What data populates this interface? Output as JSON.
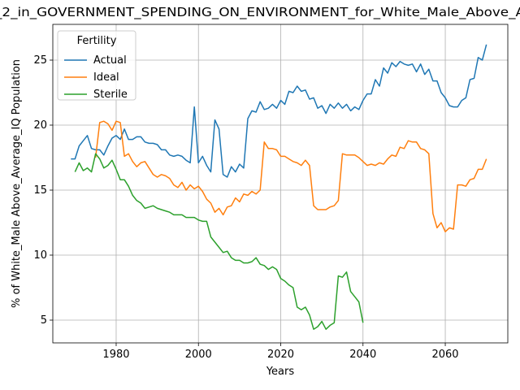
{
  "chart_data": {
    "type": "line",
    "title": "_2_in_GOVERNMENT_SPENDING_ON_ENVIRONMENT_for_White_Male_Above_A",
    "xlabel": "Years",
    "ylabel": "% of White_Male Above_Average_IQ Population",
    "legend_title": "Fertility",
    "legend_loc": "upper left",
    "grid": true,
    "xlim": [
      1964.6,
      2075.2
    ],
    "ylim": [
      3.25,
      27.75
    ],
    "xticks": [
      1980,
      2000,
      2020,
      2040,
      2060
    ],
    "yticks": [
      5,
      10,
      15,
      20,
      25
    ],
    "x": [
      1969,
      1970,
      1971,
      1972,
      1973,
      1974,
      1975,
      1976,
      1977,
      1978,
      1979,
      1980,
      1981,
      1982,
      1983,
      1984,
      1985,
      1986,
      1987,
      1988,
      1989,
      1990,
      1991,
      1992,
      1993,
      1994,
      1995,
      1996,
      1997,
      1998,
      1999,
      2000,
      2001,
      2002,
      2003,
      2004,
      2005,
      2006,
      2007,
      2008,
      2009,
      2010,
      2011,
      2012,
      2013,
      2014,
      2015,
      2016,
      2017,
      2018,
      2019,
      2020,
      2021,
      2022,
      2023,
      2024,
      2025,
      2026,
      2027,
      2028,
      2029,
      2030,
      2031,
      2032,
      2033,
      2034,
      2035,
      2036,
      2037,
      2038,
      2039,
      2040,
      2041,
      2042,
      2043,
      2044,
      2045,
      2046,
      2047,
      2048,
      2049,
      2050,
      2051,
      2052,
      2053,
      2054,
      2055,
      2056,
      2057,
      2058,
      2059,
      2060,
      2061,
      2062,
      2063,
      2064,
      2065,
      2066,
      2067,
      2068,
      2069,
      2070
    ],
    "series": [
      {
        "name": "Actual",
        "color": "#1f77b4",
        "values": [
          17.4,
          17.4,
          18.4,
          18.8,
          19.2,
          18.2,
          18.1,
          18.1,
          17.7,
          18.4,
          19.0,
          19.2,
          18.9,
          19.7,
          18.9,
          18.9,
          19.1,
          19.1,
          18.7,
          18.6,
          18.6,
          18.5,
          18.1,
          18.1,
          17.7,
          17.6,
          17.7,
          17.6,
          17.3,
          17.1,
          21.4,
          17.1,
          17.6,
          16.9,
          16.4,
          20.4,
          19.7,
          16.2,
          16.0,
          16.8,
          16.4,
          17.0,
          16.7,
          20.5,
          21.1,
          21.0,
          21.8,
          21.2,
          21.3,
          21.6,
          21.3,
          21.9,
          21.6,
          22.6,
          22.5,
          23.0,
          22.6,
          22.7,
          22.0,
          22.1,
          21.3,
          21.5,
          20.9,
          21.6,
          21.3,
          21.7,
          21.3,
          21.6,
          21.1,
          21.4,
          21.2,
          21.9,
          22.4,
          22.4,
          23.5,
          23.0,
          24.4,
          24.0,
          24.8,
          24.5,
          24.9,
          24.7,
          24.6,
          24.7,
          24.1,
          24.7,
          23.9,
          24.3,
          23.4,
          23.4,
          22.5,
          22.1,
          21.5,
          21.4,
          21.4,
          21.9,
          22.1,
          23.5,
          23.6,
          25.2,
          25.0,
          26.2
        ]
      },
      {
        "name": "Ideal",
        "color": "#ff7f0e",
        "values": [
          null,
          null,
          null,
          null,
          null,
          null,
          17.5,
          20.2,
          20.3,
          20.1,
          19.6,
          20.3,
          20.2,
          17.6,
          17.8,
          17.2,
          16.8,
          17.1,
          17.2,
          16.7,
          16.2,
          16.0,
          16.2,
          16.1,
          15.9,
          15.4,
          15.2,
          15.6,
          15.0,
          15.4,
          15.1,
          15.3,
          14.9,
          14.3,
          14.0,
          13.3,
          13.6,
          13.1,
          13.7,
          13.8,
          14.4,
          14.1,
          14.7,
          14.6,
          14.9,
          14.7,
          15.0,
          18.7,
          18.2,
          18.2,
          18.1,
          17.6,
          17.6,
          17.4,
          17.2,
          17.1,
          16.9,
          17.3,
          16.9,
          13.8,
          13.5,
          13.5,
          13.5,
          13.7,
          13.8,
          14.2,
          17.8,
          17.7,
          17.7,
          17.7,
          17.5,
          17.2,
          16.9,
          17.0,
          16.9,
          17.1,
          17.0,
          17.4,
          17.7,
          17.6,
          18.3,
          18.2,
          18.8,
          18.7,
          18.7,
          18.2,
          18.1,
          17.8,
          13.2,
          12.1,
          12.5,
          11.8,
          12.1,
          12.0,
          15.4,
          15.4,
          15.3,
          15.8,
          15.9,
          16.6,
          16.6,
          17.4
        ]
      },
      {
        "name": "Sterile",
        "color": "#2ca02c",
        "values": [
          null,
          16.4,
          17.1,
          16.5,
          16.7,
          16.4,
          17.8,
          17.4,
          16.7,
          16.9,
          17.3,
          16.6,
          15.8,
          15.8,
          15.3,
          14.6,
          14.2,
          14.0,
          13.6,
          13.7,
          13.8,
          13.6,
          13.5,
          13.4,
          13.3,
          13.1,
          13.1,
          13.1,
          12.9,
          12.9,
          12.9,
          12.7,
          12.6,
          12.6,
          11.4,
          11.0,
          10.6,
          10.2,
          10.3,
          9.8,
          9.6,
          9.6,
          9.4,
          9.4,
          9.5,
          9.8,
          9.3,
          9.2,
          8.9,
          9.1,
          8.9,
          8.2,
          8.0,
          7.7,
          7.5,
          6.0,
          5.8,
          6.0,
          5.4,
          4.3,
          4.5,
          4.9,
          4.3,
          4.6,
          4.8,
          8.4,
          8.3,
          8.7,
          7.2,
          6.8,
          6.4,
          4.8,
          null,
          null,
          null,
          null,
          null,
          null,
          null,
          null,
          null,
          null,
          null,
          null,
          null,
          null,
          null,
          null,
          null,
          null,
          null,
          null,
          null,
          null,
          null,
          null,
          null,
          null,
          null,
          null,
          null,
          null
        ]
      }
    ]
  }
}
